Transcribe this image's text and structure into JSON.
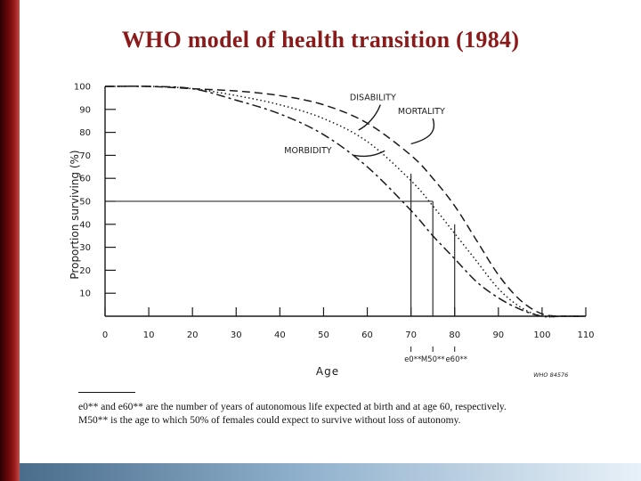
{
  "slide": {
    "title": "WHO model of health transition (1984)",
    "accent_color": "#8b1a1a"
  },
  "chart_data": {
    "type": "line",
    "title": "",
    "xlabel": "Age",
    "ylabel": "Proportion surviving (%)",
    "xlim": [
      0,
      110
    ],
    "ylim": [
      0,
      100
    ],
    "x_ticks": [
      0,
      10,
      20,
      30,
      40,
      50,
      60,
      70,
      80,
      90,
      100,
      110
    ],
    "y_ticks": [
      10,
      20,
      30,
      40,
      50,
      60,
      70,
      80,
      90,
      100
    ],
    "grid": false,
    "series": [
      {
        "name": "MORTALITY",
        "style": "dashed",
        "x": [
          0,
          10,
          20,
          30,
          40,
          50,
          60,
          70,
          75,
          80,
          85,
          90,
          95,
          100,
          105,
          110
        ],
        "y": [
          100,
          100,
          99,
          98,
          96,
          92,
          84,
          70,
          60,
          48,
          33,
          18,
          7,
          1,
          0,
          0
        ]
      },
      {
        "name": "DISABILITY",
        "style": "dotted",
        "x": [
          0,
          10,
          20,
          30,
          40,
          50,
          60,
          70,
          75,
          80,
          85,
          90,
          95,
          100,
          105,
          110
        ],
        "y": [
          100,
          100,
          99,
          96,
          92,
          86,
          76,
          59,
          48,
          36,
          24,
          12,
          4,
          0,
          0,
          0
        ]
      },
      {
        "name": "MORBIDITY",
        "style": "dash-dot",
        "x": [
          0,
          10,
          20,
          30,
          40,
          50,
          60,
          70,
          75,
          80,
          85,
          90,
          95,
          100,
          105,
          110
        ],
        "y": [
          100,
          100,
          99,
          94,
          88,
          79,
          65,
          46,
          35,
          25,
          15,
          8,
          3,
          0,
          0,
          0
        ]
      }
    ],
    "reference_lines": [
      {
        "label": "e0**",
        "x": 70,
        "from_y": 0,
        "to_y": 62
      },
      {
        "label": "M50**",
        "x": 75,
        "from_y": 0,
        "to_y": 50
      },
      {
        "label": "e60**",
        "x": 80,
        "from_y": 0,
        "to_y": 40
      }
    ],
    "horizontal_reference": {
      "y": 50,
      "from_x": 0,
      "to_x": 75
    },
    "annotations": [
      "DISABILITY",
      "MORTALITY",
      "MORBIDITY",
      "WHO 84576"
    ],
    "footnote": [
      "e0** and e60** are the number of years of autonomous life expected at birth and at age 60, respectively.",
      "M50** is the age to which 50% of females could expect to survive without loss of autonomy."
    ]
  }
}
